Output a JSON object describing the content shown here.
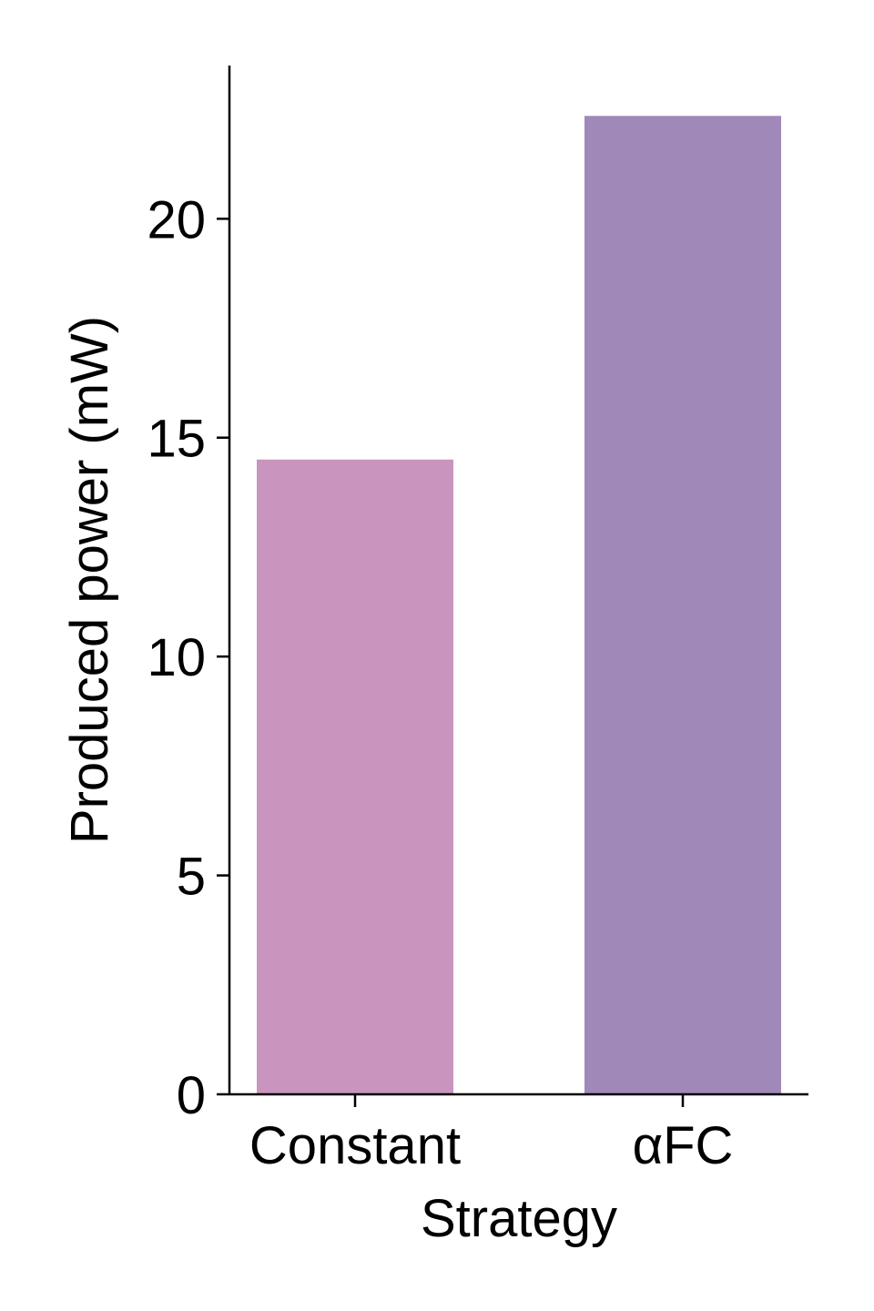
{
  "chart_data": {
    "type": "bar",
    "categories": [
      "Constant",
      "αFC"
    ],
    "values": [
      14.5,
      22.35
    ],
    "colors": [
      "#c995be",
      "#a088b9"
    ],
    "xlabel": "Strategy",
    "ylabel": "Produced power (mW)",
    "ylim": [
      0,
      23.5
    ],
    "yticks": [
      0,
      5,
      10,
      15,
      20
    ],
    "grid": false,
    "legend": "none"
  }
}
